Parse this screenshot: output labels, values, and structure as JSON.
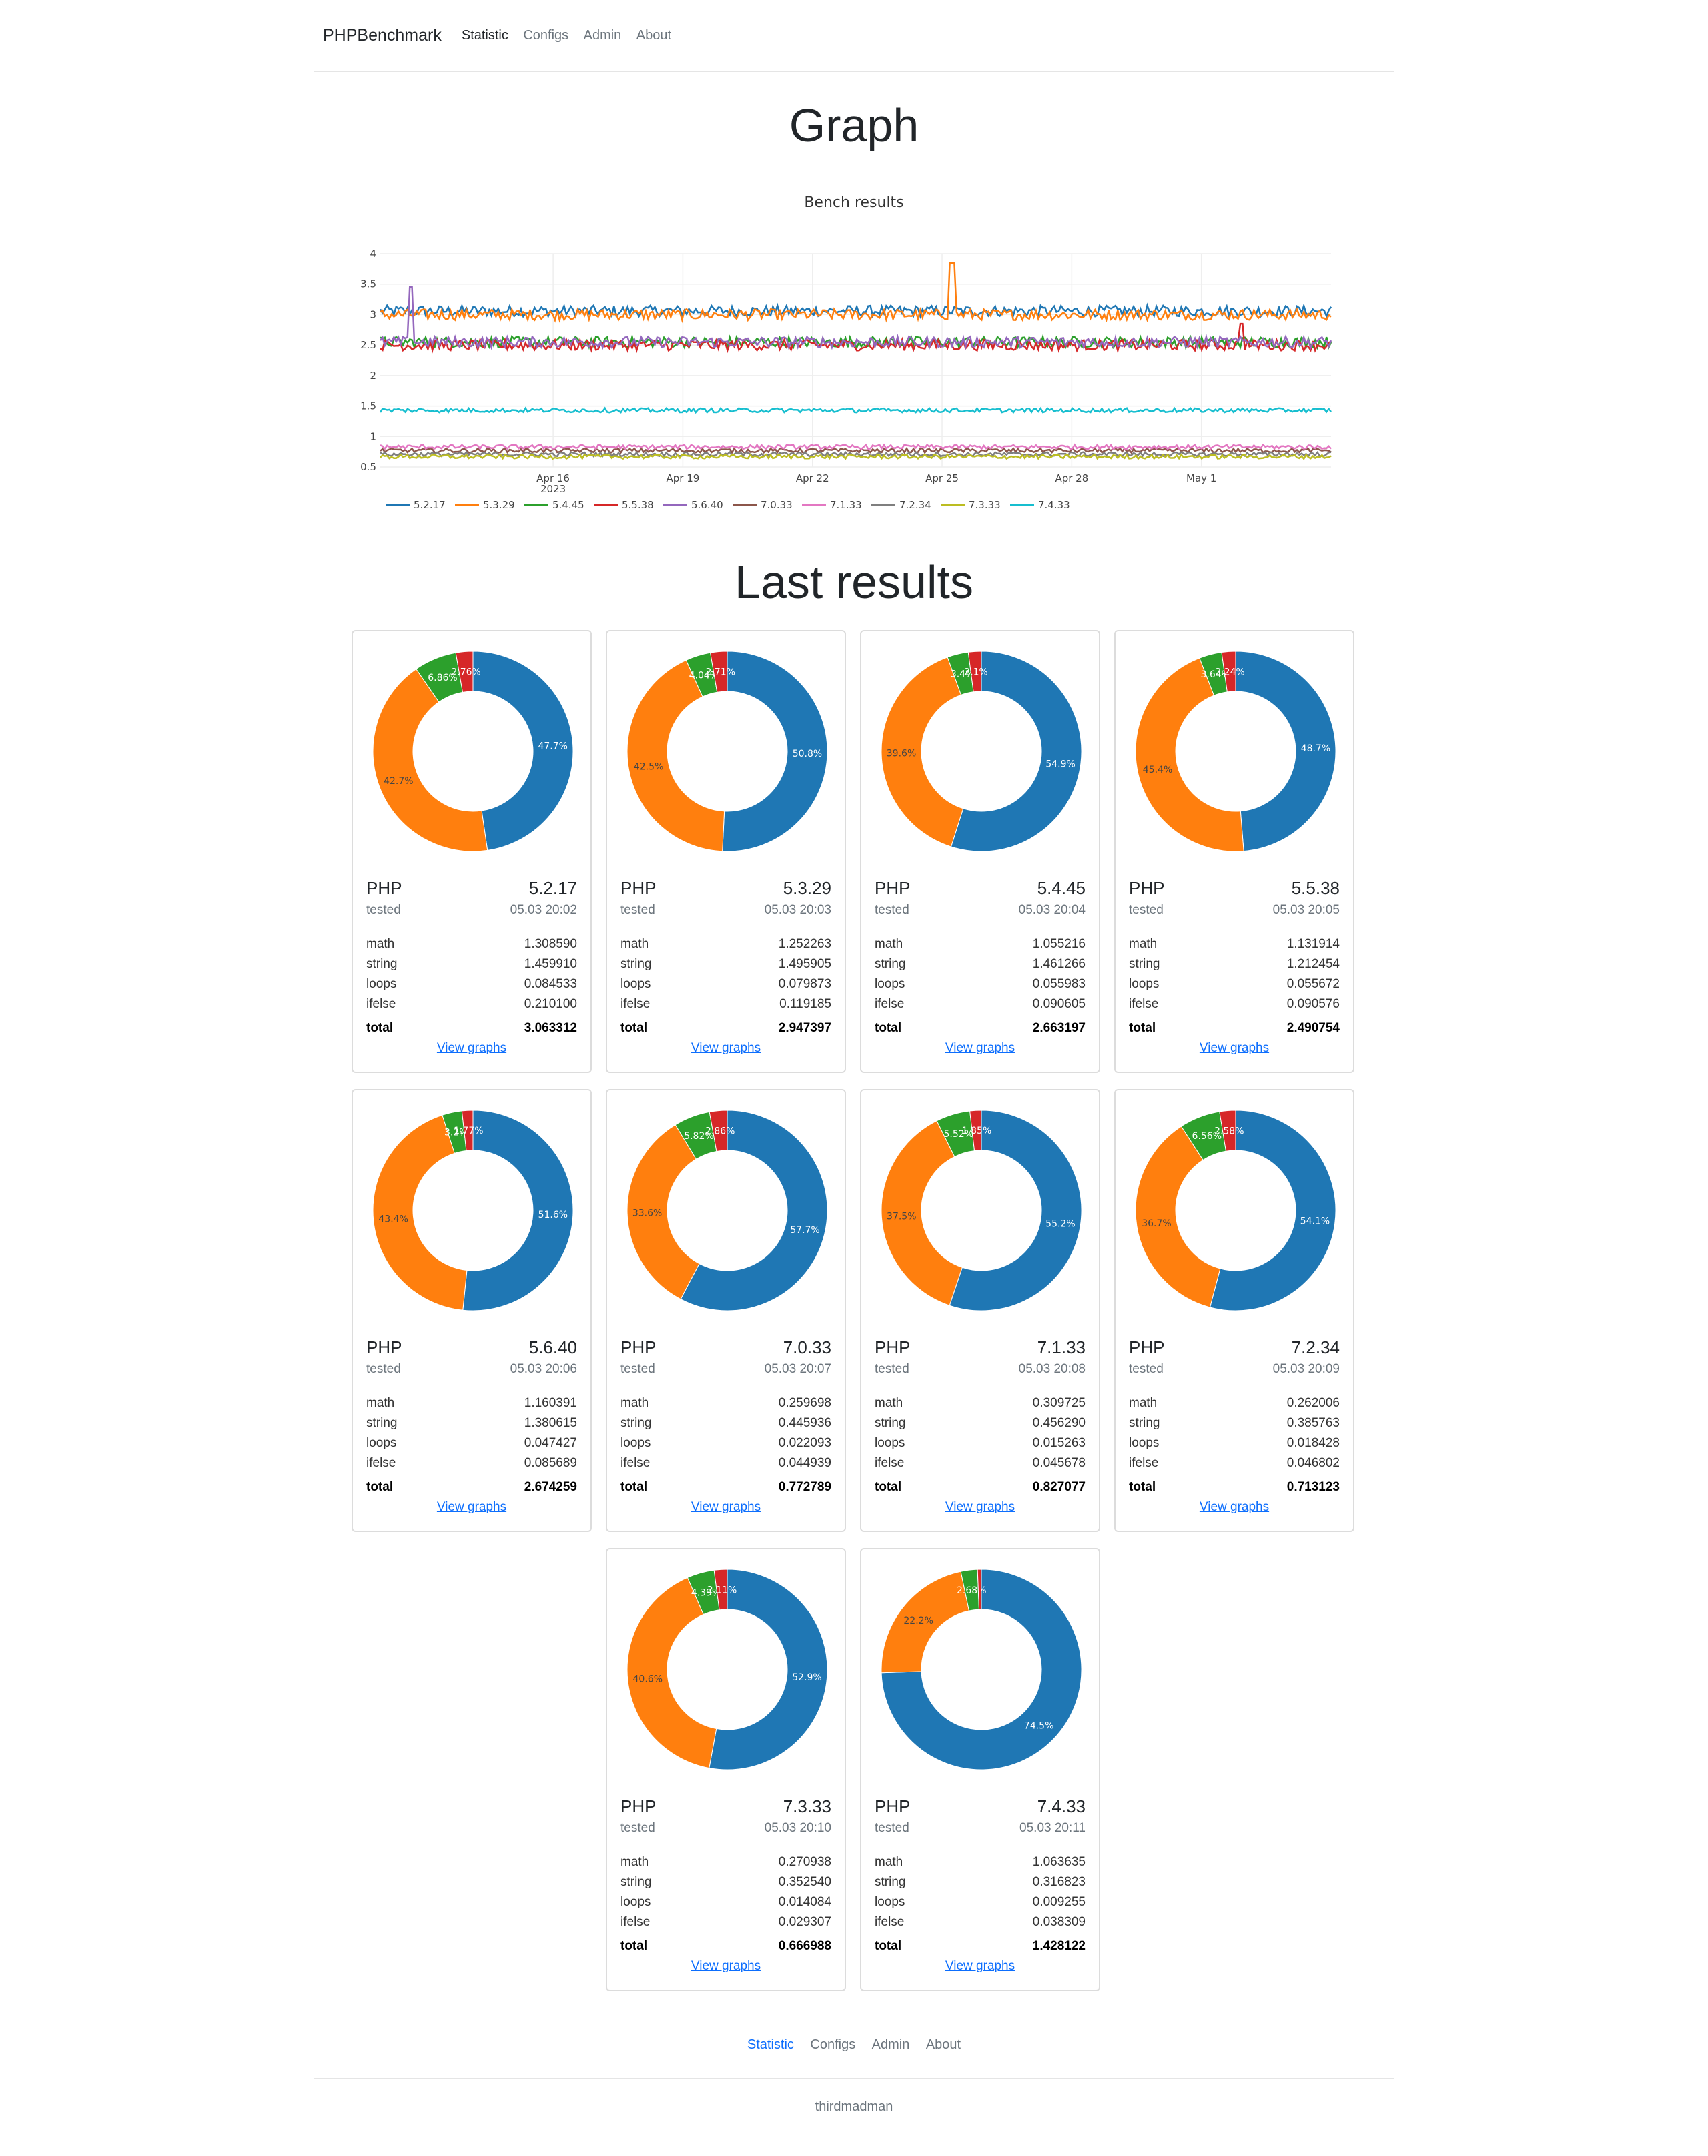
{
  "nav": {
    "brand": "PHPBenchmark",
    "items": [
      {
        "label": "Statistic",
        "active": true
      },
      {
        "label": "Configs",
        "active": false
      },
      {
        "label": "Admin",
        "active": false
      },
      {
        "label": "About",
        "active": false
      }
    ]
  },
  "graph_heading": "Graph",
  "last_results_heading": "Last results",
  "chart_data": [
    {
      "type": "line",
      "title": "Bench results",
      "xlabel": "",
      "ylabel": "",
      "ylim": [
        0.5,
        4
      ],
      "yticks": [
        0.5,
        1,
        1.5,
        2,
        2.5,
        3,
        3.5,
        4
      ],
      "x_tick_labels": [
        "Apr 16\n2023",
        "Apr 19",
        "Apr 22",
        "Apr 25",
        "Apr 28",
        "May 1"
      ],
      "x_range": [
        "2023-04-12",
        "2023-05-04"
      ],
      "grid": true,
      "legend_position": "bottom",
      "series": [
        {
          "name": "5.2.17",
          "color": "#1f77b4",
          "approx_level": 3.06
        },
        {
          "name": "5.3.29",
          "color": "#ff7f0e",
          "approx_level": 3.0
        },
        {
          "name": "5.4.45",
          "color": "#2ca02c",
          "approx_level": 2.55
        },
        {
          "name": "5.5.38",
          "color": "#d62728",
          "approx_level": 2.5
        },
        {
          "name": "5.6.40",
          "color": "#9467bd",
          "approx_level": 2.55
        },
        {
          "name": "7.0.33",
          "color": "#8c564b",
          "approx_level": 0.77
        },
        {
          "name": "7.1.33",
          "color": "#e377c2",
          "approx_level": 0.83
        },
        {
          "name": "7.2.34",
          "color": "#7f7f7f",
          "approx_level": 0.71
        },
        {
          "name": "7.3.33",
          "color": "#bcbd22",
          "approx_level": 0.67
        },
        {
          "name": "7.4.33",
          "color": "#17becf",
          "approx_level": 1.43
        }
      ]
    },
    {
      "type": "pie",
      "series_name": "5.2.17",
      "slices": [
        {
          "category": "math",
          "percent": 47.7,
          "color": "#1f77b4"
        },
        {
          "category": "string",
          "percent": 42.7,
          "color": "#ff7f0e"
        },
        {
          "category": "loops",
          "percent": 6.86,
          "color": "#2ca02c"
        },
        {
          "category": "ifelse",
          "percent": 2.76,
          "color": "#d62728"
        }
      ]
    }
  ],
  "slice_colors": {
    "math": "#1f77b4",
    "string": "#ff7f0e",
    "loops": "#2ca02c",
    "ifelse": "#d62728"
  },
  "card_labels": {
    "php": "PHP",
    "tested": "tested",
    "math": "math",
    "string": "string",
    "loops": "loops",
    "ifelse": "ifelse",
    "total": "total",
    "view_link": "View graphs"
  },
  "results": [
    {
      "version": "5.2.17",
      "tested": "05.03 20:02",
      "math": "1.308590",
      "string": "1.459910",
      "loops": "0.084533",
      "ifelse": "0.210100",
      "total": "3.063312",
      "pct": {
        "math": 47.7,
        "string": 42.7,
        "loops": 6.86,
        "ifelse": 2.76
      },
      "pct_labels": [
        "47.7%",
        "42.7%",
        "6.86%",
        "2.76%"
      ]
    },
    {
      "version": "5.3.29",
      "tested": "05.03 20:03",
      "math": "1.252263",
      "string": "1.495905",
      "loops": "0.079873",
      "ifelse": "0.119185",
      "total": "2.947397",
      "pct": {
        "math": 50.8,
        "string": 42.5,
        "loops": 4.04,
        "ifelse": 2.71
      },
      "pct_labels": [
        "50.8%",
        "42.5%",
        "4.04%",
        "2.71%"
      ]
    },
    {
      "version": "5.4.45",
      "tested": "05.03 20:04",
      "math": "1.055216",
      "string": "1.461266",
      "loops": "0.055983",
      "ifelse": "0.090605",
      "total": "2.663197",
      "pct": {
        "math": 54.9,
        "string": 39.6,
        "loops": 3.4,
        "ifelse": 2.1
      },
      "pct_labels": [
        "54.9%",
        "39.6%",
        "3.4%",
        "2.1%"
      ]
    },
    {
      "version": "5.5.38",
      "tested": "05.03 20:05",
      "math": "1.131914",
      "string": "1.212454",
      "loops": "0.055672",
      "ifelse": "0.090576",
      "total": "2.490754",
      "pct": {
        "math": 48.7,
        "string": 45.4,
        "loops": 3.64,
        "ifelse": 2.24
      },
      "pct_labels": [
        "48.7%",
        "45.4%",
        "3.64%",
        "2.24%"
      ]
    },
    {
      "version": "5.6.40",
      "tested": "05.03 20:06",
      "math": "1.160391",
      "string": "1.380615",
      "loops": "0.047427",
      "ifelse": "0.085689",
      "total": "2.674259",
      "pct": {
        "math": 51.6,
        "string": 43.4,
        "loops": 3.2,
        "ifelse": 1.77
      },
      "pct_labels": [
        "51.6%",
        "43.4%",
        "3.2%",
        "1.77%"
      ]
    },
    {
      "version": "7.0.33",
      "tested": "05.03 20:07",
      "math": "0.259698",
      "string": "0.445936",
      "loops": "0.022093",
      "ifelse": "0.044939",
      "total": "0.772789",
      "pct": {
        "math": 57.7,
        "string": 33.6,
        "loops": 5.82,
        "ifelse": 2.86
      },
      "pct_labels": [
        "57.7%",
        "33.6%",
        "5.82%",
        "2.86%"
      ]
    },
    {
      "version": "7.1.33",
      "tested": "05.03 20:08",
      "math": "0.309725",
      "string": "0.456290",
      "loops": "0.015263",
      "ifelse": "0.045678",
      "total": "0.827077",
      "pct": {
        "math": 55.2,
        "string": 37.5,
        "loops": 5.52,
        "ifelse": 1.85
      },
      "pct_labels": [
        "55.2%",
        "37.5%",
        "5.52%",
        "1.85%"
      ]
    },
    {
      "version": "7.2.34",
      "tested": "05.03 20:09",
      "math": "0.262006",
      "string": "0.385763",
      "loops": "0.018428",
      "ifelse": "0.046802",
      "total": "0.713123",
      "pct": {
        "math": 54.1,
        "string": 36.7,
        "loops": 6.56,
        "ifelse": 2.58
      },
      "pct_labels": [
        "54.1%",
        "36.7%",
        "6.56%",
        "2.58%"
      ]
    },
    {
      "version": "7.3.33",
      "tested": "05.03 20:10",
      "math": "0.270938",
      "string": "0.352540",
      "loops": "0.014084",
      "ifelse": "0.029307",
      "total": "0.666988",
      "pct": {
        "math": 52.9,
        "string": 40.6,
        "loops": 4.39,
        "ifelse": 2.11
      },
      "pct_labels": [
        "52.9%",
        "40.6%",
        "4.39%",
        "2.11%"
      ]
    },
    {
      "version": "7.4.33",
      "tested": "05.03 20:11",
      "math": "1.063635",
      "string": "0.316823",
      "loops": "0.009255",
      "ifelse": "0.038309",
      "total": "1.428122",
      "pct": {
        "math": 74.5,
        "string": 22.2,
        "loops": 2.68,
        "ifelse": 0.62
      },
      "pct_labels": [
        "74.5%",
        "22.2%",
        "2.68%",
        ""
      ]
    }
  ],
  "footer": {
    "items": [
      {
        "label": "Statistic",
        "active": true
      },
      {
        "label": "Configs",
        "active": false
      },
      {
        "label": "Admin",
        "active": false
      },
      {
        "label": "About",
        "active": false
      }
    ],
    "credit": "thirdmadman"
  }
}
